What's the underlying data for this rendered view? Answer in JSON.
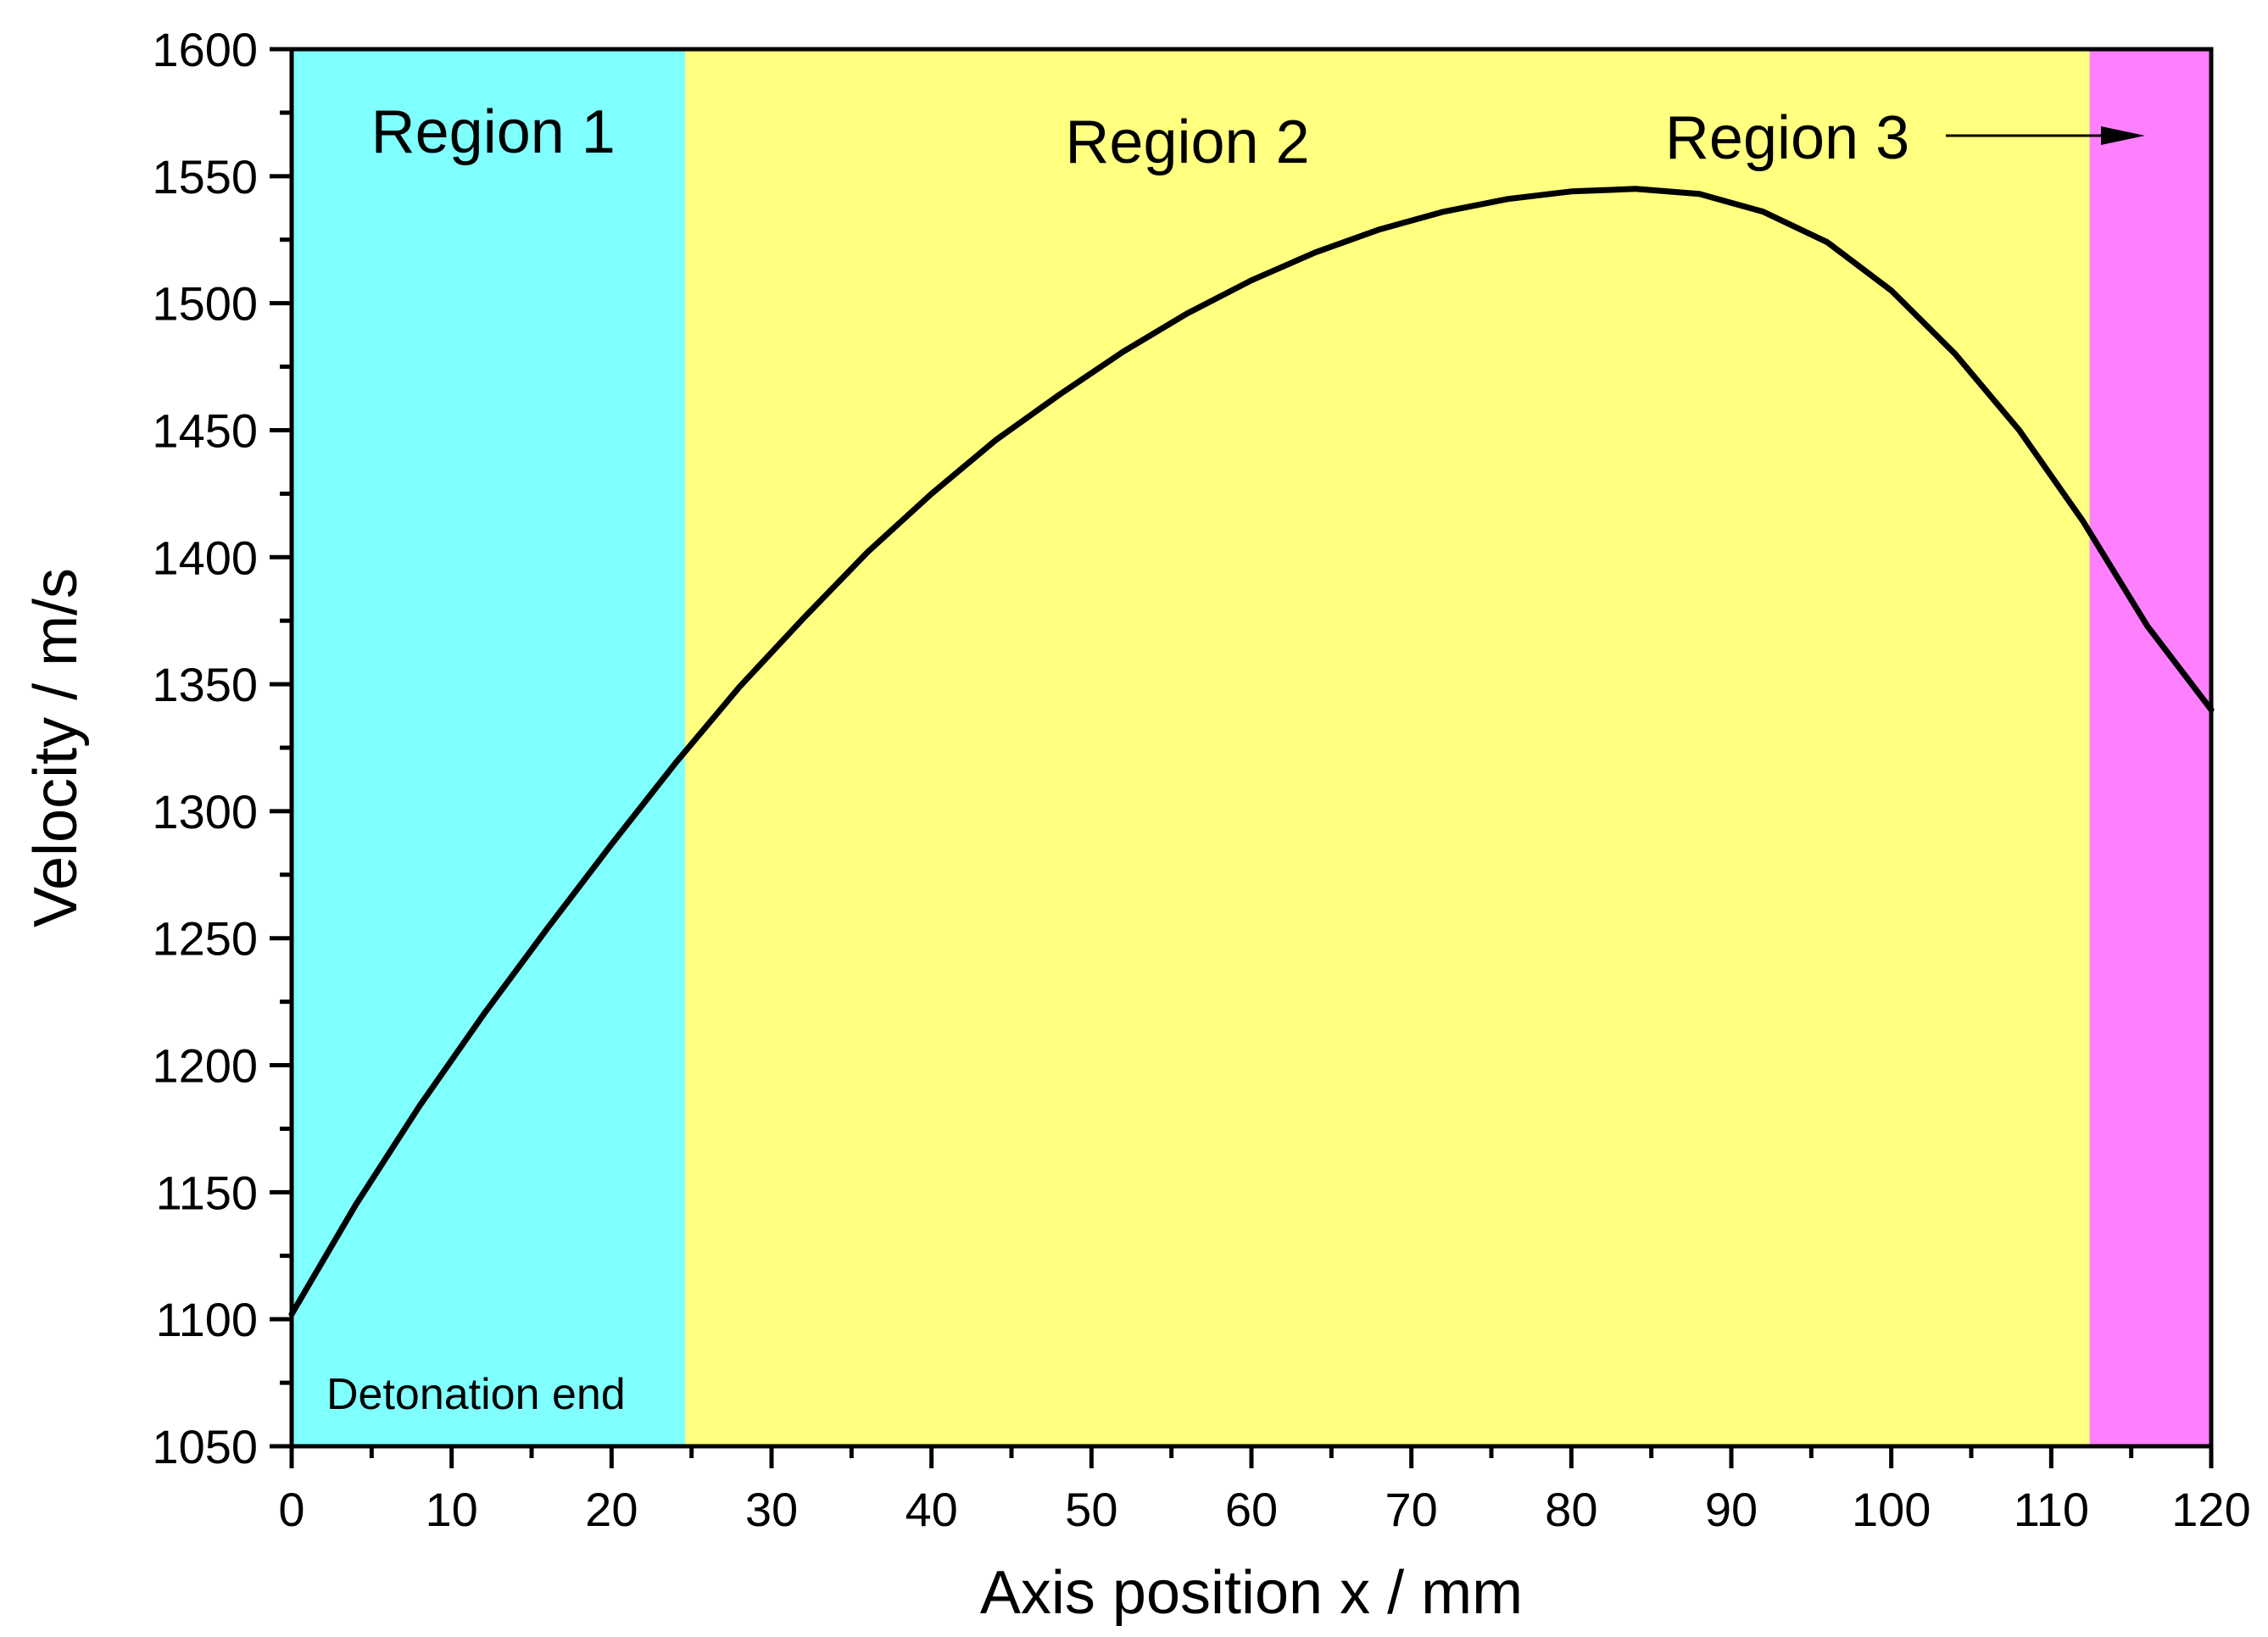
{
  "chart_data": {
    "type": "line",
    "title": "",
    "xlabel": "Axis position x / mm",
    "ylabel": "Velocity / m/s",
    "xlim": [
      0,
      120
    ],
    "ylim": [
      1050,
      1600
    ],
    "x_ticks": [
      0,
      10,
      20,
      30,
      40,
      50,
      60,
      70,
      80,
      90,
      100,
      110,
      120
    ],
    "y_ticks": [
      1050,
      1100,
      1150,
      1200,
      1250,
      1300,
      1350,
      1400,
      1450,
      1500,
      1550,
      1600
    ],
    "grid": false,
    "legend": "none",
    "regions": [
      {
        "label": "Region 1",
        "x_start": 0,
        "x_end": 24.6,
        "color": "#80ffff"
      },
      {
        "label": "Region 2",
        "x_start": 24.6,
        "x_end": 112.4,
        "color": "#ffff80"
      },
      {
        "label": "Region 3",
        "x_start": 112.4,
        "x_end": 120,
        "color": "#ff80ff"
      }
    ],
    "annotations": [
      {
        "text": "Detonation end"
      }
    ],
    "series": [
      {
        "color": "#000000",
        "x": [
          0,
          4,
          8,
          12,
          16,
          20,
          24,
          28,
          32,
          36,
          40,
          44,
          48,
          52,
          56,
          60,
          64,
          68,
          72,
          76,
          80,
          84,
          88,
          92,
          96,
          100,
          104,
          108,
          112,
          116,
          120
        ],
        "y": [
          1102,
          1145,
          1184,
          1220,
          1254,
          1287,
          1319,
          1349,
          1376,
          1402,
          1425,
          1446,
          1464,
          1481,
          1496,
          1509,
          1520,
          1529,
          1536,
          1541,
          1544,
          1545,
          1543,
          1536,
          1524,
          1505,
          1480,
          1450,
          1414,
          1373,
          1340
        ]
      }
    ]
  }
}
